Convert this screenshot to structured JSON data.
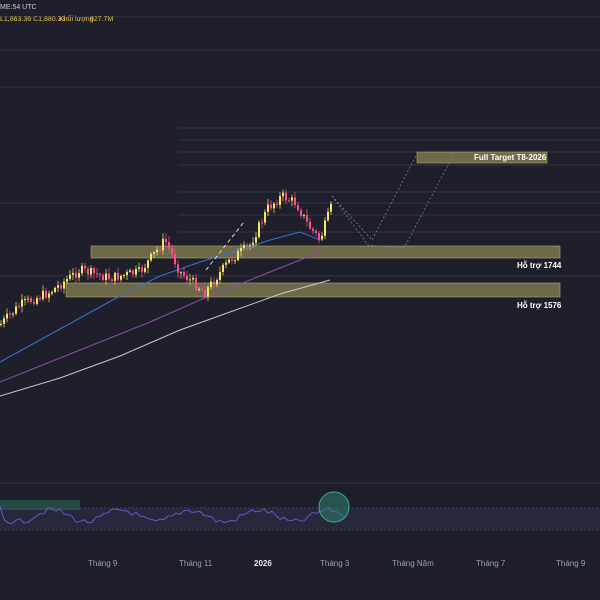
{
  "header": {
    "time_text": "ME:54 UTC",
    "price_text": "L1,863.36  C1,880.33",
    "volume_label": "Khối lượng",
    "volume_value": "927.7M"
  },
  "colors": {
    "background": "#1e1f2b",
    "candle_up": "#f5e56b",
    "candle_down": "#ff4d8d",
    "ma_blue": "#3b6fd6",
    "ma_purple": "#8b4fa8",
    "ma_white": "#c8c8cc",
    "zone_fill": "#8a8454",
    "zone_border": "#b3ab6a",
    "rsi_line": "#6b5bd6",
    "rsi_circle": "#2e7d6b"
  },
  "zones": [
    {
      "id": "support-1744",
      "label": "Hỗ trợ 1744"
    },
    {
      "id": "support-1576",
      "label": "Hỗ trợ 1576"
    },
    {
      "id": "target",
      "label": "Full Target T8-2026"
    }
  ],
  "x_axis": [
    {
      "label": "Tháng 9",
      "bold": false
    },
    {
      "label": "Tháng 11",
      "bold": false
    },
    {
      "label": "2026",
      "bold": true
    },
    {
      "label": "Tháng 3",
      "bold": false
    },
    {
      "label": "Tháng Năm",
      "bold": false
    },
    {
      "label": "Tháng 7",
      "bold": false
    },
    {
      "label": "Tháng 9",
      "bold": false
    }
  ],
  "chart_data": {
    "type": "candlestick",
    "x_labels": [
      "Tháng 9",
      "Tháng 11",
      "2026",
      "Tháng 3",
      "Tháng Năm",
      "Tháng 7",
      "Tháng 9"
    ],
    "support_levels": [
      {
        "label": "Hỗ trợ 1744",
        "value": 1744
      },
      {
        "label": "Hỗ trợ 1576",
        "value": 1576
      }
    ],
    "target_label": "Full Target T8-2026",
    "last_candle": {
      "low": 1863.36,
      "close": 1880.33,
      "volume": "927.7M"
    },
    "moving_averages": [
      "blue",
      "purple",
      "white"
    ],
    "indicator": "RSI",
    "grid": true
  }
}
